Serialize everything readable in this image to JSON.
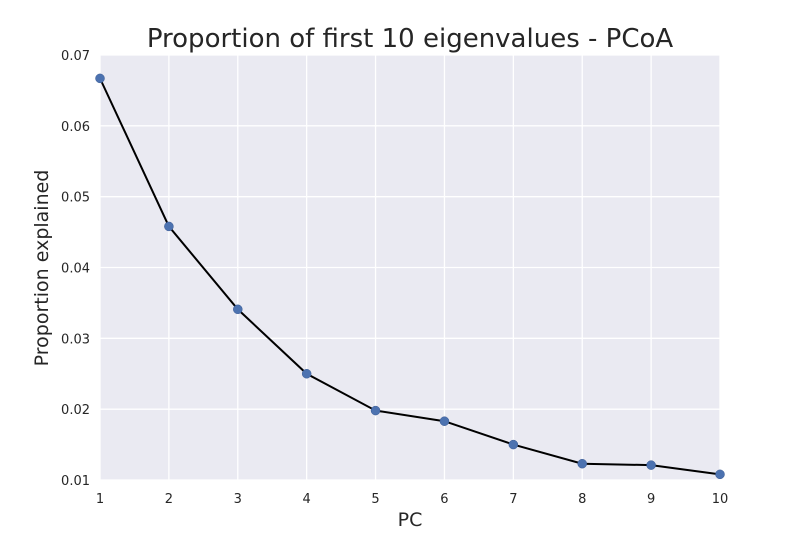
{
  "chart_data": {
    "type": "line",
    "title": "Proportion of first 10 eigenvalues - PCoA",
    "xlabel": "PC",
    "ylabel": "Proportion explained",
    "xlim": [
      1,
      10
    ],
    "ylim": [
      0.01,
      0.07
    ],
    "xticks": [
      "1",
      "2",
      "3",
      "4",
      "5",
      "6",
      "7",
      "8",
      "9",
      "10"
    ],
    "yticks": [
      "0.01",
      "0.02",
      "0.03",
      "0.04",
      "0.05",
      "0.06",
      "0.07"
    ],
    "grid": true,
    "colors": {
      "background": "#eaeaf2",
      "grid": "#ffffff",
      "line": "#000000",
      "marker": "#4c72b0"
    },
    "series": [
      {
        "x": [
          1,
          2,
          3,
          4,
          5,
          6,
          7,
          8,
          9,
          10
        ],
        "values": [
          0.0667,
          0.0458,
          0.0341,
          0.025,
          0.0198,
          0.0183,
          0.015,
          0.0123,
          0.0121,
          0.0108
        ]
      }
    ]
  }
}
